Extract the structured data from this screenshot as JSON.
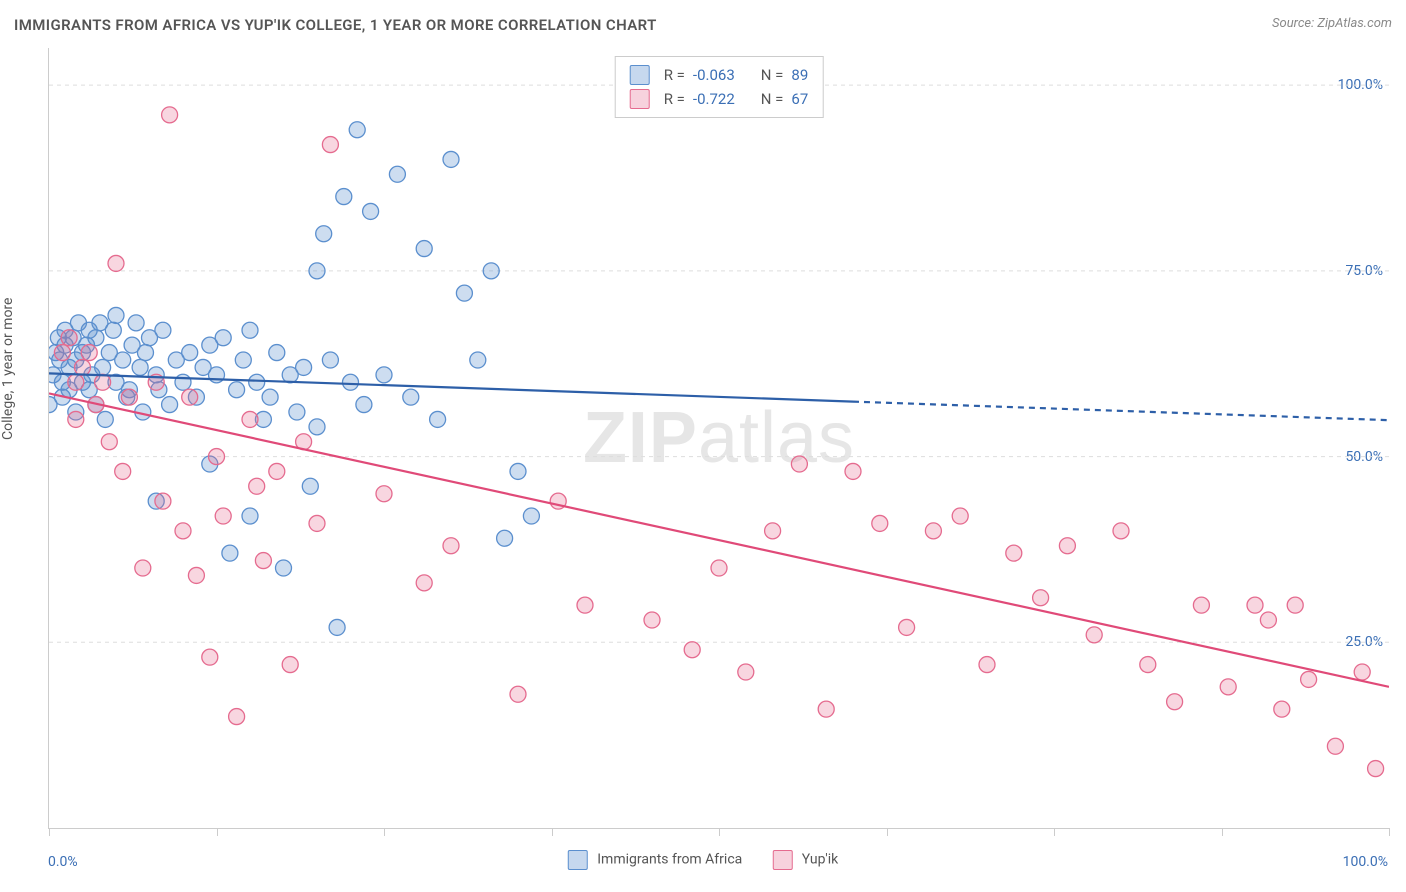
{
  "title": "IMMIGRANTS FROM AFRICA VS YUP'IK COLLEGE, 1 YEAR OR MORE CORRELATION CHART",
  "source": "Source: ZipAtlas.com",
  "ylabel": "College, 1 year or more",
  "watermark_a": "ZIP",
  "watermark_b": "atlas",
  "chart": {
    "type": "scatter",
    "xlim": [
      0,
      100
    ],
    "ylim": [
      0,
      105
    ],
    "background_color": "#ffffff",
    "grid_color": "#dddddd",
    "grid_dash": "4,4",
    "yticks": [
      25,
      50,
      75,
      100
    ],
    "ytick_labels": [
      "25.0%",
      "50.0%",
      "75.0%",
      "100.0%"
    ],
    "xticks": [
      0,
      12.5,
      25,
      37.5,
      50,
      62.5,
      75,
      87.5,
      100
    ],
    "xlabel_min": "0.0%",
    "xlabel_max": "100.0%",
    "axis_color": "#cccccc",
    "tick_label_color": "#3b6fb5",
    "tick_label_fontsize": 14,
    "title_color": "#555555",
    "title_fontsize": 15,
    "marker_radius": 8,
    "marker_stroke_width": 1.3,
    "marker_fill_opacity": 0.3,
    "trend_line_width": 2.2,
    "trend_dash_pattern": "6,5"
  },
  "legend_top": {
    "rows": [
      {
        "swatch_stroke": "#5b8fce",
        "swatch_fill": "rgba(91,143,206,0.35)",
        "r_label": "R =",
        "r_value": "-0.063",
        "n_label": "N =",
        "n_value": "89"
      },
      {
        "swatch_stroke": "#e56b8f",
        "swatch_fill": "rgba(229,107,143,0.30)",
        "r_label": "R =",
        "r_value": "-0.722",
        "n_label": "N =",
        "n_value": "67"
      }
    ]
  },
  "legend_bottom": {
    "items": [
      {
        "swatch_stroke": "#5b8fce",
        "swatch_fill": "rgba(91,143,206,0.35)",
        "label": "Immigrants from Africa"
      },
      {
        "swatch_stroke": "#e56b8f",
        "swatch_fill": "rgba(229,107,143,0.30)",
        "label": "Yup'ik"
      }
    ]
  },
  "series": [
    {
      "name": "Immigrants from Africa",
      "color_stroke": "#5b8fce",
      "color_fill": "rgba(91,143,206,0.30)",
      "trend_color": "#2d5fa8",
      "trend": {
        "x1": 0,
        "y1": 61.2,
        "x2": 60,
        "y2": 57.4,
        "x_dash_to": 100,
        "y_dash_to": 54.9
      },
      "points": [
        [
          0,
          57
        ],
        [
          0.3,
          61
        ],
        [
          0.5,
          64
        ],
        [
          0.7,
          66
        ],
        [
          0.8,
          63
        ],
        [
          1,
          60
        ],
        [
          1,
          58
        ],
        [
          1.2,
          65
        ],
        [
          1.2,
          67
        ],
        [
          1.5,
          59
        ],
        [
          1.5,
          62
        ],
        [
          1.8,
          66
        ],
        [
          2,
          63
        ],
        [
          2,
          56
        ],
        [
          2.2,
          68
        ],
        [
          2.5,
          60
        ],
        [
          2.5,
          64
        ],
        [
          2.8,
          65
        ],
        [
          3,
          67
        ],
        [
          3,
          59
        ],
        [
          3.2,
          61
        ],
        [
          3.5,
          57
        ],
        [
          3.5,
          66
        ],
        [
          3.8,
          68
        ],
        [
          4,
          62
        ],
        [
          4.2,
          55
        ],
        [
          4.5,
          64
        ],
        [
          4.8,
          67
        ],
        [
          5,
          60
        ],
        [
          5,
          69
        ],
        [
          5.5,
          63
        ],
        [
          5.8,
          58
        ],
        [
          6,
          59
        ],
        [
          6.2,
          65
        ],
        [
          6.5,
          68
        ],
        [
          6.8,
          62
        ],
        [
          7,
          56
        ],
        [
          7.2,
          64
        ],
        [
          7.5,
          66
        ],
        [
          8,
          61
        ],
        [
          8,
          44
        ],
        [
          8.2,
          59
        ],
        [
          8.5,
          67
        ],
        [
          9,
          57
        ],
        [
          9.5,
          63
        ],
        [
          10,
          60
        ],
        [
          10.5,
          64
        ],
        [
          11,
          58
        ],
        [
          11.5,
          62
        ],
        [
          12,
          65
        ],
        [
          12,
          49
        ],
        [
          12.5,
          61
        ],
        [
          13,
          66
        ],
        [
          13.5,
          37
        ],
        [
          14,
          59
        ],
        [
          14.5,
          63
        ],
        [
          15,
          67
        ],
        [
          15,
          42
        ],
        [
          15.5,
          60
        ],
        [
          16,
          55
        ],
        [
          16.5,
          58
        ],
        [
          17,
          64
        ],
        [
          17.5,
          35
        ],
        [
          18,
          61
        ],
        [
          18.5,
          56
        ],
        [
          19,
          62
        ],
        [
          19.5,
          46
        ],
        [
          20,
          75
        ],
        [
          20,
          54
        ],
        [
          20.5,
          80
        ],
        [
          21,
          63
        ],
        [
          21.5,
          27
        ],
        [
          22,
          85
        ],
        [
          22.5,
          60
        ],
        [
          23,
          94
        ],
        [
          23.5,
          57
        ],
        [
          24,
          83
        ],
        [
          25,
          61
        ],
        [
          26,
          88
        ],
        [
          27,
          58
        ],
        [
          28,
          78
        ],
        [
          29,
          55
        ],
        [
          30,
          90
        ],
        [
          31,
          72
        ],
        [
          32,
          63
        ],
        [
          33,
          75
        ],
        [
          34,
          39
        ],
        [
          35,
          48
        ],
        [
          36,
          42
        ]
      ]
    },
    {
      "name": "Yup'ik",
      "color_stroke": "#e56b8f",
      "color_fill": "rgba(229,107,143,0.28)",
      "trend_color": "#e04a78",
      "trend": {
        "x1": 0,
        "y1": 58.5,
        "x2": 100,
        "y2": 19.0
      },
      "points": [
        [
          1,
          64
        ],
        [
          1.5,
          66
        ],
        [
          2,
          60
        ],
        [
          2,
          55
        ],
        [
          2.5,
          62
        ],
        [
          3,
          64
        ],
        [
          3.5,
          57
        ],
        [
          4,
          60
        ],
        [
          4.5,
          52
        ],
        [
          5,
          76
        ],
        [
          5.5,
          48
        ],
        [
          6,
          58
        ],
        [
          7,
          35
        ],
        [
          8,
          60
        ],
        [
          8.5,
          44
        ],
        [
          9,
          96
        ],
        [
          10,
          40
        ],
        [
          10.5,
          58
        ],
        [
          11,
          34
        ],
        [
          12,
          23
        ],
        [
          12.5,
          50
        ],
        [
          13,
          42
        ],
        [
          14,
          15
        ],
        [
          15,
          55
        ],
        [
          15.5,
          46
        ],
        [
          16,
          36
        ],
        [
          17,
          48
        ],
        [
          18,
          22
        ],
        [
          19,
          52
        ],
        [
          20,
          41
        ],
        [
          21,
          92
        ],
        [
          25,
          45
        ],
        [
          28,
          33
        ],
        [
          30,
          38
        ],
        [
          35,
          18
        ],
        [
          38,
          44
        ],
        [
          40,
          30
        ],
        [
          45,
          28
        ],
        [
          48,
          24
        ],
        [
          50,
          35
        ],
        [
          52,
          21
        ],
        [
          54,
          40
        ],
        [
          56,
          49
        ],
        [
          58,
          16
        ],
        [
          60,
          48
        ],
        [
          62,
          41
        ],
        [
          64,
          27
        ],
        [
          66,
          40
        ],
        [
          68,
          42
        ],
        [
          70,
          22
        ],
        [
          72,
          37
        ],
        [
          74,
          31
        ],
        [
          76,
          38
        ],
        [
          78,
          26
        ],
        [
          80,
          40
        ],
        [
          82,
          22
        ],
        [
          84,
          17
        ],
        [
          86,
          30
        ],
        [
          88,
          19
        ],
        [
          90,
          30
        ],
        [
          91,
          28
        ],
        [
          92,
          16
        ],
        [
          93,
          30
        ],
        [
          94,
          20
        ],
        [
          96,
          11
        ],
        [
          98,
          21
        ],
        [
          99,
          8
        ]
      ]
    }
  ]
}
